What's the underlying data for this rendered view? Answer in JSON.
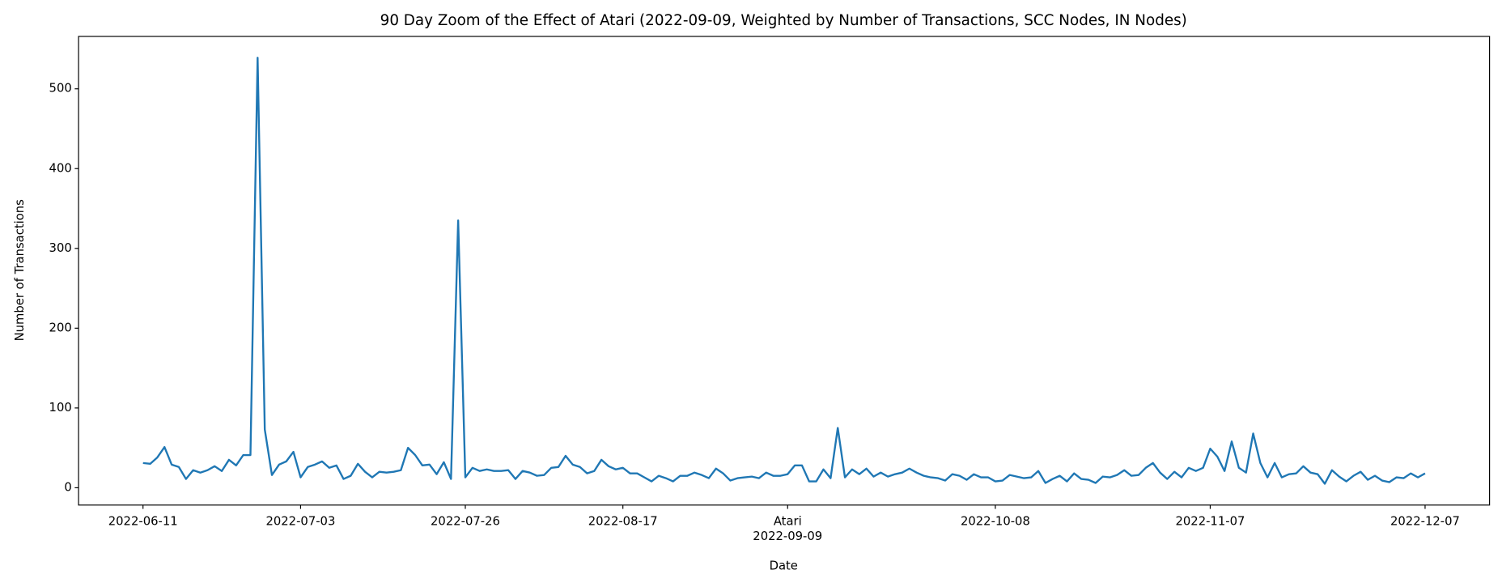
{
  "chart_data": {
    "type": "line",
    "title": "90 Day Zoom of the Effect of Atari (2022-09-09, Weighted by Number of Transactions, SCC Nodes, IN Nodes)",
    "x_label": "Date",
    "y_label": "Number of Transactions",
    "color": "#1f77b4",
    "x": [
      "2022-06-11",
      "2022-06-12",
      "2022-06-13",
      "2022-06-14",
      "2022-06-15",
      "2022-06-16",
      "2022-06-17",
      "2022-06-18",
      "2022-06-19",
      "2022-06-20",
      "2022-06-21",
      "2022-06-22",
      "2022-06-23",
      "2022-06-24",
      "2022-06-25",
      "2022-06-26",
      "2022-06-27",
      "2022-06-28",
      "2022-06-29",
      "2022-06-30",
      "2022-07-01",
      "2022-07-02",
      "2022-07-03",
      "2022-07-04",
      "2022-07-05",
      "2022-07-06",
      "2022-07-07",
      "2022-07-08",
      "2022-07-09",
      "2022-07-10",
      "2022-07-11",
      "2022-07-12",
      "2022-07-13",
      "2022-07-14",
      "2022-07-15",
      "2022-07-16",
      "2022-07-17",
      "2022-07-18",
      "2022-07-19",
      "2022-07-20",
      "2022-07-21",
      "2022-07-22",
      "2022-07-23",
      "2022-07-24",
      "2022-07-25",
      "2022-07-26",
      "2022-07-27",
      "2022-07-28",
      "2022-07-29",
      "2022-07-30",
      "2022-07-31",
      "2022-08-01",
      "2022-08-02",
      "2022-08-03",
      "2022-08-04",
      "2022-08-05",
      "2022-08-06",
      "2022-08-07",
      "2022-08-08",
      "2022-08-09",
      "2022-08-10",
      "2022-08-11",
      "2022-08-12",
      "2022-08-13",
      "2022-08-14",
      "2022-08-15",
      "2022-08-16",
      "2022-08-17",
      "2022-08-18",
      "2022-08-19",
      "2022-08-20",
      "2022-08-21",
      "2022-08-22",
      "2022-08-23",
      "2022-08-24",
      "2022-08-25",
      "2022-08-26",
      "2022-08-27",
      "2022-08-28",
      "2022-08-29",
      "2022-08-30",
      "2022-08-31",
      "2022-09-01",
      "2022-09-02",
      "2022-09-03",
      "2022-09-04",
      "2022-09-05",
      "2022-09-06",
      "2022-09-07",
      "2022-09-08",
      "2022-09-09",
      "2022-09-10",
      "2022-09-11",
      "2022-09-12",
      "2022-09-13",
      "2022-09-14",
      "2022-09-15",
      "2022-09-16",
      "2022-09-17",
      "2022-09-18",
      "2022-09-19",
      "2022-09-20",
      "2022-09-21",
      "2022-09-22",
      "2022-09-23",
      "2022-09-24",
      "2022-09-25",
      "2022-09-26",
      "2022-09-27",
      "2022-09-28",
      "2022-09-29",
      "2022-09-30",
      "2022-10-01",
      "2022-10-02",
      "2022-10-03",
      "2022-10-04",
      "2022-10-05",
      "2022-10-06",
      "2022-10-07",
      "2022-10-08",
      "2022-10-09",
      "2022-10-10",
      "2022-10-11",
      "2022-10-12",
      "2022-10-13",
      "2022-10-14",
      "2022-10-15",
      "2022-10-16",
      "2022-10-17",
      "2022-10-18",
      "2022-10-19",
      "2022-10-20",
      "2022-10-21",
      "2022-10-22",
      "2022-10-23",
      "2022-10-24",
      "2022-10-25",
      "2022-10-26",
      "2022-10-27",
      "2022-10-28",
      "2022-10-29",
      "2022-10-30",
      "2022-10-31",
      "2022-11-01",
      "2022-11-02",
      "2022-11-03",
      "2022-11-04",
      "2022-11-05",
      "2022-11-06",
      "2022-11-07",
      "2022-11-08",
      "2022-11-09",
      "2022-11-10",
      "2022-11-11",
      "2022-11-12",
      "2022-11-13",
      "2022-11-14",
      "2022-11-15",
      "2022-11-16",
      "2022-11-17",
      "2022-11-18",
      "2022-11-19",
      "2022-11-20",
      "2022-11-21",
      "2022-11-22",
      "2022-11-23",
      "2022-11-24",
      "2022-11-25",
      "2022-11-26",
      "2022-11-27",
      "2022-11-28",
      "2022-11-29",
      "2022-11-30",
      "2022-12-01",
      "2022-12-02",
      "2022-12-03",
      "2022-12-04",
      "2022-12-05",
      "2022-12-06",
      "2022-12-07"
    ],
    "values": [
      31,
      30,
      38,
      51,
      29,
      26,
      11,
      22,
      19,
      22,
      27,
      21,
      35,
      28,
      41,
      41,
      539,
      73,
      16,
      29,
      33,
      45,
      13,
      26,
      29,
      33,
      25,
      28,
      11,
      15,
      30,
      20,
      13,
      20,
      19,
      20,
      22,
      50,
      41,
      28,
      29,
      17,
      32,
      11,
      335,
      13,
      25,
      21,
      23,
      21,
      21,
      22,
      11,
      21,
      19,
      15,
      16,
      25,
      26,
      40,
      29,
      26,
      18,
      21,
      35,
      27,
      23,
      25,
      18,
      18,
      13,
      8,
      15,
      12,
      8,
      15,
      15,
      19,
      16,
      12,
      24,
      18,
      9,
      12,
      13,
      14,
      12,
      19,
      15,
      15,
      17,
      28,
      28,
      8,
      8,
      23,
      12,
      75,
      13,
      23,
      17,
      24,
      14,
      19,
      14,
      17,
      19,
      24,
      19,
      15,
      13,
      12,
      9,
      17,
      15,
      10,
      17,
      13,
      13,
      8,
      9,
      16,
      14,
      12,
      13,
      21,
      6,
      11,
      15,
      8,
      18,
      11,
      10,
      6,
      14,
      13,
      16,
      22,
      15,
      16,
      25,
      31,
      19,
      11,
      20,
      13,
      25,
      21,
      25,
      49,
      39,
      21,
      58,
      25,
      19,
      68,
      31,
      13,
      31,
      13,
      17,
      18,
      27,
      19,
      17,
      5,
      22,
      14,
      8,
      15,
      20,
      10,
      15,
      9,
      7,
      13,
      12,
      18,
      13,
      18
    ],
    "xlim": [
      "2022-06-02",
      "2022-12-16"
    ],
    "xticks": [
      "2022-06-11",
      "2022-07-03",
      "2022-07-26",
      "2022-08-17",
      {
        "value": "2022-09-09",
        "label": "Atari\n2022-09-09"
      },
      "2022-10-08",
      "2022-11-07",
      "2022-12-07"
    ],
    "ylim": [
      -21.7,
      565.7
    ],
    "yticks": [
      0,
      100,
      200,
      300,
      400,
      500
    ],
    "grid": false
  }
}
